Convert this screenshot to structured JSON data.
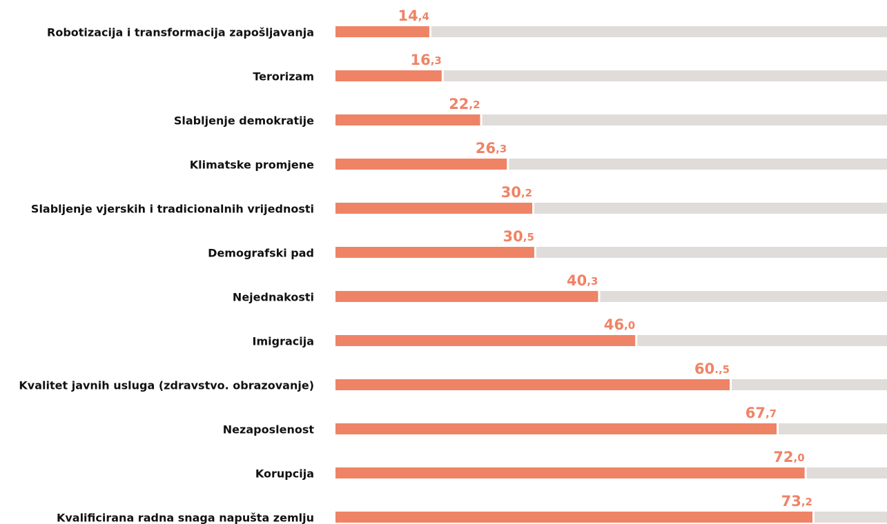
{
  "chart_data": {
    "type": "hbar",
    "categories": [
      "Robotizacija i transformacija zapošljavanja",
      "Terorizam",
      "Slabljenje demokratije",
      "Klimatske promjene",
      "Slabljenje vjerskih i tradicionalnih vrijednosti",
      "Demografski pad",
      "Nejednakosti",
      "Imigracija",
      "Kvalitet javnih usluga (zdravstvo. obrazovanje)",
      "Nezaposlenost",
      "Korupcija",
      "Kvalificirana radna snaga napušta zemlju"
    ],
    "values": [
      14.4,
      16.3,
      22.2,
      26.3,
      30.2,
      30.5,
      40.3,
      46.0,
      60.5,
      67.7,
      72.0,
      73.2
    ],
    "value_labels": [
      "14,4",
      "16,3",
      "22,2",
      "26,3",
      "30,2",
      "30,5",
      "40,3",
      "46,0",
      "60.,5",
      "67,7",
      "72,0",
      "73,2"
    ],
    "color": "#ef8366",
    "track_color": "#e0dcd9",
    "xlim": [
      0,
      100
    ]
  }
}
